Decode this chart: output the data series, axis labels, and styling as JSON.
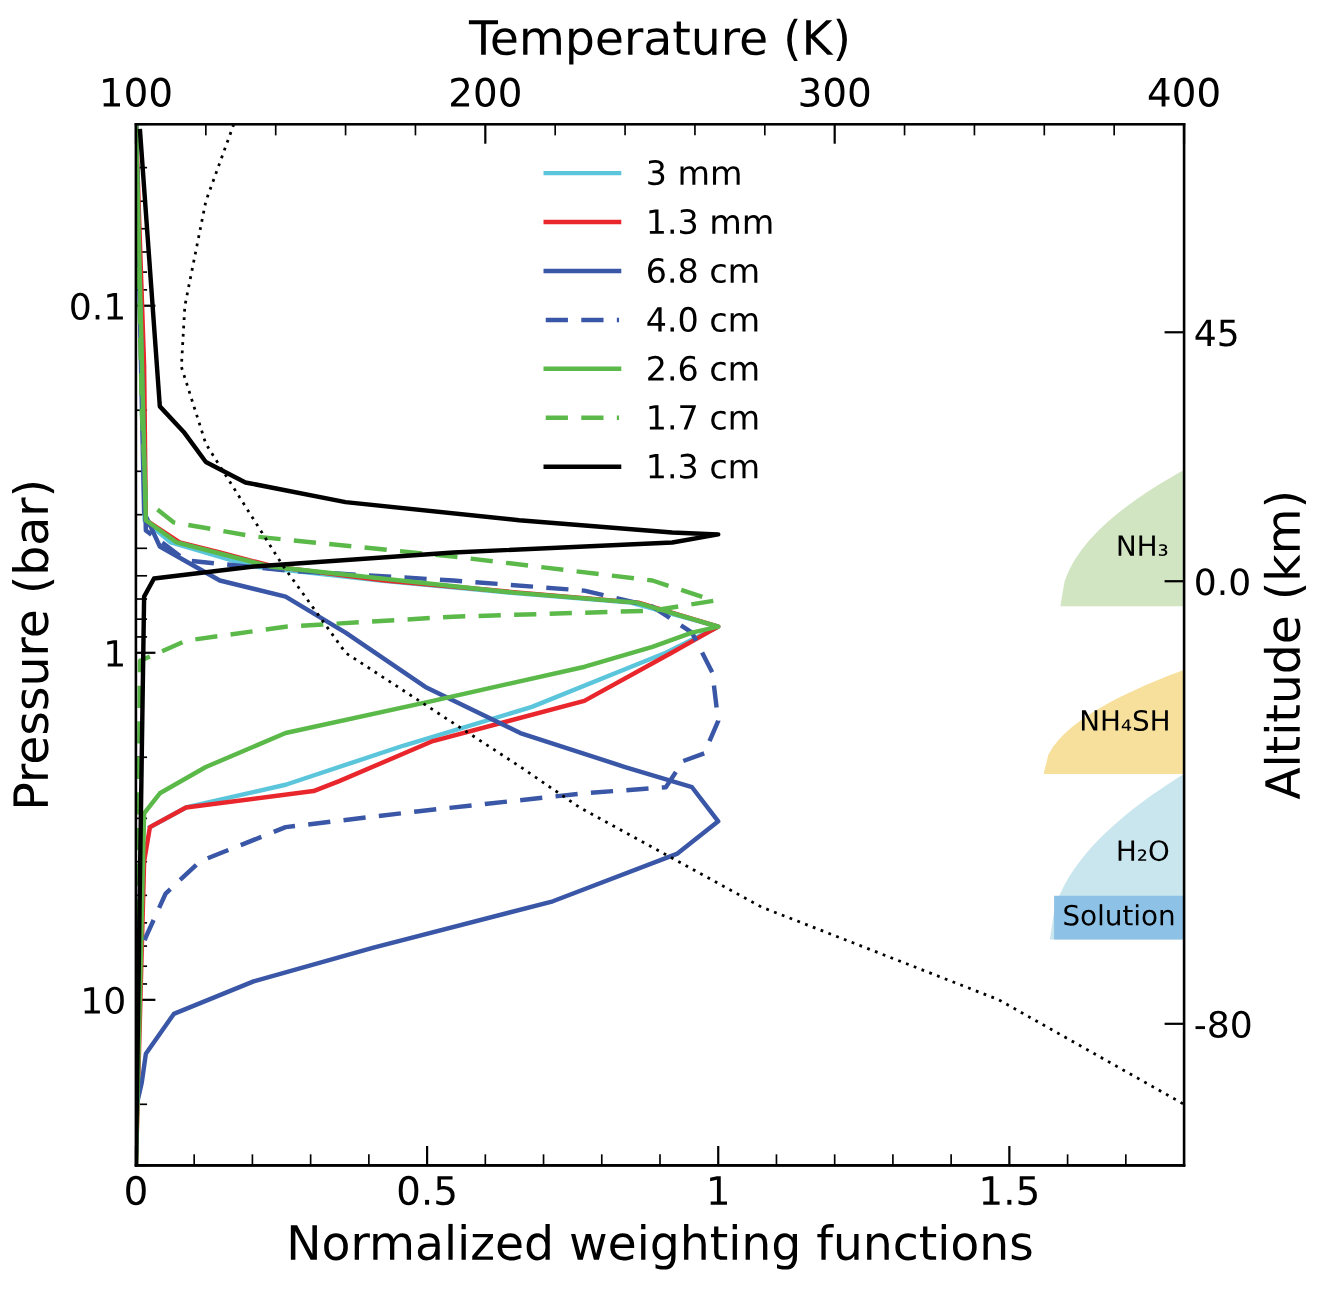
{
  "chart_data": {
    "type": "line",
    "xlabel": "Normalized weighting functions",
    "ylabel": "Pressure (bar)",
    "y2label": "Altitude (km)",
    "x2label": "Temperature (K)",
    "xlim": [
      0,
      1.8
    ],
    "xticks": [
      0,
      0.5,
      1,
      1.5
    ],
    "x2lim": [
      100,
      400
    ],
    "x2ticks": [
      100,
      200,
      300,
      400
    ],
    "ylim": [
      30,
      0.03
    ],
    "yticks": [
      0.1,
      1,
      10
    ],
    "y2lim": [
      -105.6,
      82.6
    ],
    "y2ticks": [
      45,
      {
        "value": 0,
        "label": "0.0"
      },
      {
        "value": -80,
        "label": "-80"
      }
    ],
    "log": "y",
    "grid": false,
    "legend": "top",
    "marker": "none",
    "series": [
      {
        "name": "3 mm",
        "color": "#5bc5dc",
        "line_style": "solid",
        "x": [
          0,
          0.01,
          0.015,
          0.06,
          0.2,
          0.42,
          0.64,
          0.85,
          1.0,
          0.91,
          0.68,
          0.46,
          0.257,
          0.086,
          0.024
        ],
        "values": [
          0.03,
          0.15,
          0.415,
          0.481,
          0.564,
          0.619,
          0.671,
          0.717,
          0.841,
          1.0,
          1.432,
          1.85,
          2.4,
          2.79,
          3.18
        ]
      },
      {
        "name": "1.3 mm",
        "color": "#e8262b",
        "line_style": "solid",
        "x": [
          0,
          0.014,
          0.017,
          0.075,
          0.144,
          0.236,
          0.428,
          0.658,
          0.863,
          1.0,
          0.92,
          0.77,
          0.51,
          0.349,
          0.305,
          0.086,
          0.024,
          0.014,
          0
        ],
        "values": [
          0.03,
          0.149,
          0.415,
          0.481,
          0.514,
          0.564,
          0.619,
          0.671,
          0.717,
          0.841,
          1.0,
          1.376,
          1.796,
          2.343,
          2.503,
          2.79,
          3.18,
          3.99,
          30
        ]
      },
      {
        "name": "6.8 cm",
        "color": "#3a56a6",
        "line_style": "solid",
        "x": [
          0,
          0.014,
          0.041,
          0.144,
          0.257,
          0.36,
          0.497,
          0.66,
          0.84,
          0.955,
          1.0,
          0.93,
          0.716,
          0.408,
          0.202,
          0.065,
          0.017,
          0.01,
          0,
          0
        ],
        "values": [
          0.03,
          0.394,
          0.494,
          0.619,
          0.689,
          0.875,
          1.254,
          1.703,
          2.134,
          2.44,
          3.06,
          3.79,
          5.2,
          7.07,
          8.85,
          10.98,
          14.3,
          17.3,
          20.5,
          30
        ]
      },
      {
        "name": "4.0 cm",
        "color": "#3a56a6",
        "line_style": "dashed",
        "x": [
          0,
          0.017,
          0.086,
          0.257,
          0.545,
          0.77,
          0.887,
          0.955,
          0.99,
          1.0,
          0.976,
          0.94,
          0.91,
          0.77,
          0.486,
          0.257,
          0.11,
          0.051,
          0.017,
          0.007,
          0
        ],
        "values": [
          0.03,
          0.444,
          0.542,
          0.579,
          0.619,
          0.662,
          0.736,
          0.875,
          1.142,
          1.572,
          1.95,
          2.05,
          2.44,
          2.54,
          2.86,
          3.18,
          3.99,
          4.94,
          6.59,
          7.36,
          30
        ]
      },
      {
        "name": "2.6 cm",
        "color": "#5bb949",
        "line_style": "solid",
        "x": [
          0,
          0.017,
          0.07,
          0.23,
          0.65,
          0.86,
          1.0,
          0.955,
          0.887,
          0.771,
          0.51,
          0.257,
          0.12,
          0.041,
          0.014,
          0
        ],
        "values": [
          0.03,
          0.415,
          0.481,
          0.564,
          0.671,
          0.717,
          0.841,
          0.875,
          0.961,
          1.097,
          1.376,
          1.703,
          2.134,
          2.54,
          2.9,
          30
        ]
      },
      {
        "name": "1.7 cm",
        "color": "#5bb949",
        "line_style": "dashed",
        "x": [
          0,
          0.01,
          0.017,
          0.065,
          0.202,
          0.545,
          0.887,
          0.993,
          0.887,
          0.545,
          0.257,
          0.086,
          0.007,
          0
        ],
        "values": [
          0.03,
          0.2,
          0.364,
          0.421,
          0.462,
          0.528,
          0.619,
          0.708,
          0.756,
          0.787,
          0.841,
          0.923,
          1.055,
          30
        ]
      },
      {
        "name": "1.3 cm",
        "color": "#000000",
        "line_style": "solid",
        "x": [
          0.007,
          0.041,
          0.082,
          0.12,
          0.188,
          0.36,
          0.658,
          0.921,
          1.0,
          0.921,
          0.545,
          0.202,
          0.031,
          0.014,
          0.007,
          0
        ],
        "values": [
          0.0314,
          0.195,
          0.231,
          0.282,
          0.323,
          0.368,
          0.415,
          0.45,
          0.456,
          0.481,
          0.514,
          0.564,
          0.611,
          0.689,
          4.3,
          30
        ]
      },
      {
        "color": "#000000",
        "line_style": "dotted",
        "axis": "x2",
        "x": [
          128,
          120,
          114,
          113,
          120,
          142,
          160,
          210,
          227,
          279,
          347,
          400
        ],
        "values": [
          0.03,
          0.05,
          0.1,
          0.15,
          0.25,
          0.56,
          1,
          2.13,
          2.79,
          5.4,
          10,
          20
        ]
      }
    ],
    "annotations": [
      "NH₃",
      "NH₄SH",
      "H₂O",
      "Solution"
    ]
  }
}
